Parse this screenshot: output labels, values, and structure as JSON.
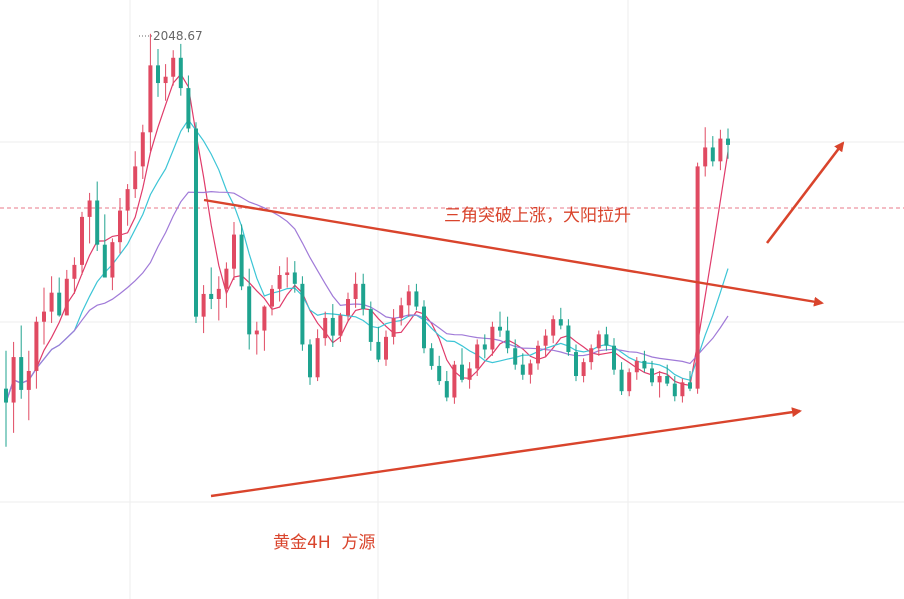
{
  "chart_data": {
    "type": "candlestick",
    "instrument_label": "黄金4H  方源",
    "annotation": "三角突破上涨，大阳拉升",
    "high_label": "2048.67",
    "grid": true,
    "colors": {
      "up": "#e04a62",
      "down": "#1ea38f",
      "ma_short": "#e03b6a",
      "ma_mid": "#3cc5d6",
      "ma_long": "#a07ad8",
      "trendline": "#d9442c",
      "grid": "#eeeeee",
      "price_line": "#e87a8a",
      "label_text": "#d9442c",
      "high_label_text": "#666666"
    },
    "candles_ohlc_approx": [
      [
        2020.6,
        2023.6,
        2016.0,
        2019.5
      ],
      [
        2019.5,
        2024.3,
        2017.1,
        2023.1
      ],
      [
        2023.1,
        2025.6,
        2019.8,
        2020.5
      ],
      [
        2020.5,
        2023.6,
        2018.1,
        2022.0
      ],
      [
        2022.0,
        2026.3,
        2020.6,
        2025.9
      ],
      [
        2025.9,
        2028.6,
        2024.1,
        2026.7
      ],
      [
        2026.7,
        2029.5,
        2025.8,
        2028.2
      ],
      [
        2028.2,
        2029.4,
        2026.3,
        2026.4
      ],
      [
        2026.4,
        2030.0,
        2026.4,
        2029.3
      ],
      [
        2029.3,
        2031.0,
        2028.1,
        2030.4
      ],
      [
        2030.4,
        2034.6,
        2029.6,
        2034.2
      ],
      [
        2034.2,
        2036.1,
        2032.1,
        2035.5
      ],
      [
        2035.5,
        2037.0,
        2031.5,
        2032.0
      ],
      [
        2032.0,
        2034.4,
        2029.4,
        2029.4
      ],
      [
        2029.4,
        2032.5,
        2028.4,
        2032.2
      ],
      [
        2032.2,
        2035.7,
        2031.3,
        2034.7
      ],
      [
        2034.7,
        2036.8,
        2033.5,
        2036.4
      ],
      [
        2036.4,
        2039.4,
        2035.7,
        2038.2
      ],
      [
        2038.2,
        2041.5,
        2037.2,
        2040.9
      ],
      [
        2040.9,
        2048.7,
        2039.4,
        2046.2
      ],
      [
        2046.2,
        2047.5,
        2043.7,
        2044.8
      ],
      [
        2044.8,
        2046.3,
        2043.4,
        2045.3
      ],
      [
        2045.3,
        2047.4,
        2044.6,
        2046.8
      ],
      [
        2046.8,
        2047.9,
        2043.8,
        2044.4
      ],
      [
        2044.4,
        2045.4,
        2040.9,
        2041.2
      ],
      [
        2041.2,
        2041.7,
        2025.8,
        2026.3
      ],
      [
        2026.3,
        2028.8,
        2025.0,
        2028.1
      ],
      [
        2028.1,
        2030.2,
        2026.9,
        2027.7
      ],
      [
        2027.7,
        2029.5,
        2026.0,
        2028.5
      ],
      [
        2028.5,
        2030.6,
        2027.0,
        2030.1
      ],
      [
        2030.1,
        2033.8,
        2029.2,
        2032.8
      ],
      [
        2032.8,
        2033.6,
        2028.4,
        2028.7
      ],
      [
        2028.7,
        2030.1,
        2023.7,
        2024.9
      ],
      [
        2024.9,
        2025.9,
        2023.3,
        2025.2
      ],
      [
        2025.2,
        2027.2,
        2023.6,
        2027.1
      ],
      [
        2027.1,
        2028.8,
        2026.4,
        2028.5
      ],
      [
        2028.5,
        2030.3,
        2027.5,
        2029.6
      ],
      [
        2029.6,
        2031.0,
        2028.6,
        2029.8
      ],
      [
        2029.8,
        2030.7,
        2028.2,
        2028.9
      ],
      [
        2028.9,
        2029.5,
        2023.6,
        2024.1
      ],
      [
        2024.1,
        2024.5,
        2020.9,
        2021.5
      ],
      [
        2021.5,
        2025.3,
        2021.2,
        2024.6
      ],
      [
        2024.6,
        2026.7,
        2024.0,
        2026.2
      ],
      [
        2026.2,
        2027.3,
        2023.9,
        2024.8
      ],
      [
        2024.8,
        2026.6,
        2024.3,
        2026.4
      ],
      [
        2026.4,
        2028.2,
        2025.9,
        2027.7
      ],
      [
        2027.7,
        2029.8,
        2027.0,
        2028.9
      ],
      [
        2028.9,
        2029.7,
        2026.4,
        2026.9
      ],
      [
        2026.9,
        2027.5,
        2023.6,
        2024.3
      ],
      [
        2024.3,
        2025.5,
        2022.7,
        2022.9
      ],
      [
        2022.9,
        2025.2,
        2022.4,
        2024.7
      ],
      [
        2024.7,
        2026.9,
        2024.1,
        2026.2
      ],
      [
        2026.2,
        2027.8,
        2025.6,
        2027.2
      ],
      [
        2027.2,
        2028.8,
        2026.3,
        2028.3
      ],
      [
        2028.3,
        2028.9,
        2026.8,
        2027.1
      ],
      [
        2027.1,
        2027.6,
        2023.4,
        2023.8
      ],
      [
        2023.8,
        2024.2,
        2022.1,
        2022.4
      ],
      [
        2022.4,
        2023.2,
        2020.9,
        2021.2
      ],
      [
        2021.2,
        2022.0,
        2019.6,
        2019.9
      ],
      [
        2019.9,
        2022.8,
        2019.4,
        2022.5
      ],
      [
        2022.5,
        2023.8,
        2021.1,
        2021.3
      ],
      [
        2021.3,
        2022.7,
        2020.6,
        2022.2
      ],
      [
        2022.2,
        2024.5,
        2021.6,
        2024.1
      ],
      [
        2024.1,
        2024.9,
        2023.0,
        2023.7
      ],
      [
        2023.7,
        2025.9,
        2023.2,
        2025.5
      ],
      [
        2025.5,
        2026.7,
        2024.7,
        2025.2
      ],
      [
        2025.2,
        2026.3,
        2023.4,
        2023.8
      ],
      [
        2023.8,
        2024.5,
        2022.1,
        2022.5
      ],
      [
        2022.5,
        2023.4,
        2021.3,
        2021.7
      ],
      [
        2021.7,
        2022.9,
        2021.0,
        2022.6
      ],
      [
        2022.6,
        2024.4,
        2022.1,
        2024.0
      ],
      [
        2024.0,
        2025.3,
        2023.1,
        2024.8
      ],
      [
        2024.8,
        2026.4,
        2024.2,
        2026.1
      ],
      [
        2026.1,
        2027.0,
        2025.3,
        2025.6
      ],
      [
        2025.6,
        2026.1,
        2023.2,
        2023.5
      ],
      [
        2023.5,
        2024.1,
        2021.2,
        2021.6
      ],
      [
        2021.6,
        2023.0,
        2021.1,
        2022.7
      ],
      [
        2022.7,
        2024.1,
        2022.1,
        2023.8
      ],
      [
        2023.8,
        2025.2,
        2023.2,
        2024.9
      ],
      [
        2024.9,
        2025.5,
        2023.6,
        2024.0
      ],
      [
        2024.0,
        2024.6,
        2021.7,
        2022.1
      ],
      [
        2022.1,
        2022.7,
        2020.1,
        2020.4
      ],
      [
        2020.4,
        2022.2,
        2020.0,
        2021.9
      ],
      [
        2021.9,
        2023.1,
        2021.3,
        2022.8
      ],
      [
        2022.8,
        2023.6,
        2021.9,
        2022.2
      ],
      [
        2022.2,
        2022.8,
        2020.8,
        2021.1
      ],
      [
        2021.1,
        2022.0,
        2019.9,
        2021.6
      ],
      [
        2021.6,
        2022.5,
        2020.8,
        2021.0
      ],
      [
        2021.0,
        2021.6,
        2019.6,
        2020.0
      ],
      [
        2020.0,
        2021.4,
        2019.5,
        2021.1
      ],
      [
        2021.1,
        2022.0,
        2020.4,
        2020.6
      ],
      [
        2020.6,
        2038.5,
        2020.2,
        2038.2
      ],
      [
        2038.2,
        2041.3,
        2037.4,
        2039.7
      ],
      [
        2039.7,
        2040.6,
        2038.2,
        2038.6
      ],
      [
        2038.6,
        2041.1,
        2037.9,
        2040.4
      ],
      [
        2040.4,
        2041.2,
        2038.8,
        2039.9
      ]
    ]
  }
}
